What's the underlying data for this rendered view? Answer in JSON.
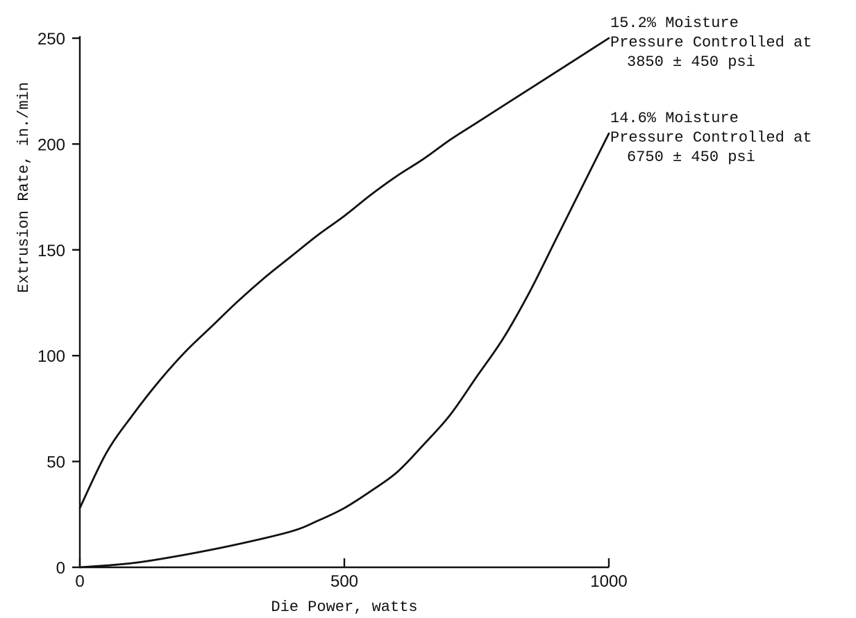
{
  "chart_data": {
    "type": "line",
    "title": "",
    "xlabel": "Die Power, watts",
    "ylabel": "Extrusion Rate, in./min",
    "xlim": [
      0,
      1000
    ],
    "ylim": [
      0,
      250
    ],
    "x_ticks": [
      0,
      500,
      1000
    ],
    "y_ticks": [
      0,
      50,
      100,
      150,
      200,
      250
    ],
    "grid": false,
    "series": [
      {
        "name": "15.2% Moisture",
        "x": [
          0,
          50,
          100,
          150,
          200,
          250,
          300,
          350,
          400,
          450,
          500,
          550,
          600,
          650,
          700,
          750,
          800,
          850,
          900,
          950,
          1000
        ],
        "y": [
          28,
          54,
          72,
          88,
          102,
          114,
          126,
          137,
          147,
          157,
          166,
          176,
          185,
          193,
          202,
          210,
          218,
          226,
          234,
          242,
          250
        ]
      },
      {
        "name": "14.6% Moisture",
        "x": [
          0,
          100,
          200,
          300,
          400,
          450,
          500,
          550,
          600,
          650,
          700,
          750,
          800,
          850,
          900,
          950,
          1000
        ],
        "y": [
          0,
          2,
          6,
          11,
          17,
          22,
          28,
          36,
          45,
          58,
          72,
          90,
          108,
          130,
          155,
          180,
          205
        ]
      }
    ],
    "annotations": [
      {
        "series": 0,
        "lines": [
          "15.2% Moisture",
          "Pressure Controlled at",
          "3850 ± 450 psi"
        ]
      },
      {
        "series": 1,
        "lines": [
          "14.6% Moisture",
          "Pressure Controlled at",
          "6750 ± 450 psi"
        ]
      }
    ]
  }
}
